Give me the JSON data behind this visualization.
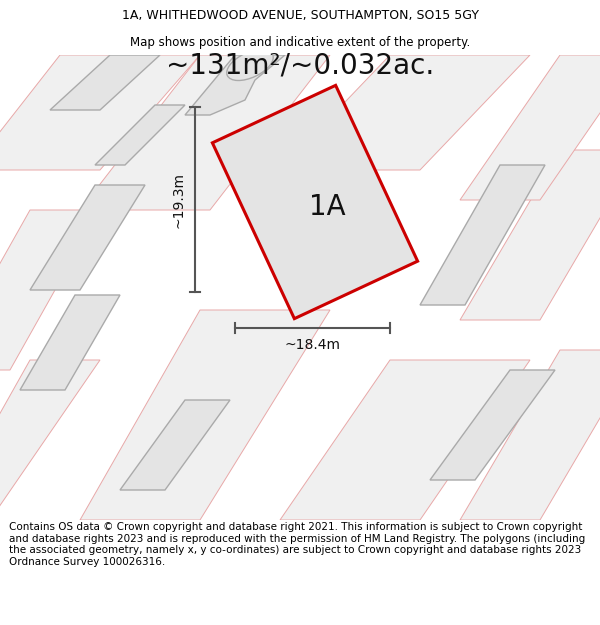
{
  "title_line1": "1A, WHITHEDWOOD AVENUE, SOUTHAMPTON, SO15 5GY",
  "title_line2": "Map shows position and indicative extent of the property.",
  "area_text": "~131m²/~0.032ac.",
  "dim_width": "~18.4m",
  "dim_height": "~19.3m",
  "label_1A": "1A",
  "footer": "Contains OS data © Crown copyright and database right 2021. This information is subject to Crown copyright and database rights 2023 and is reproduced with the permission of HM Land Registry. The polygons (including the associated geometry, namely x, y co-ordinates) are subject to Crown copyright and database rights 2023 Ordnance Survey 100026316.",
  "bg_color": "#ffffff",
  "map_bg": "#ffffff",
  "parcel_fill": "#e4e4e4",
  "parcel_edge": "#aaaaaa",
  "pink_edge": "#e8a8a8",
  "highlight_fill": "#e4e4e4",
  "highlight_edge": "#cc0000",
  "arrow_color": "#555555",
  "title_fontsize": 9,
  "area_fontsize": 20,
  "label_fontsize": 20,
  "dim_fontsize": 10,
  "footer_fontsize": 7.5
}
